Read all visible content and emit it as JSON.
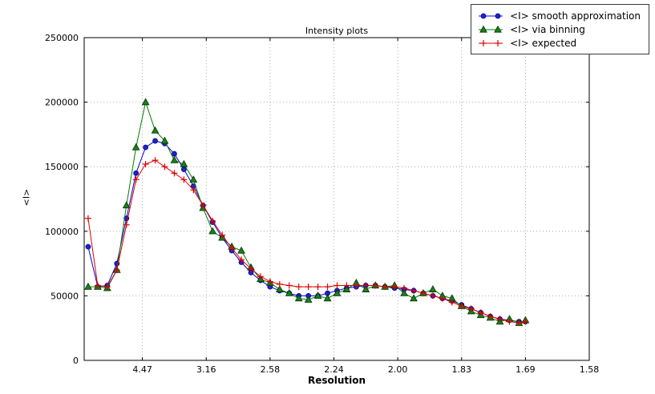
{
  "figure": {
    "title": "Intensity plots",
    "xlabel": "Resolution",
    "ylabel": "<I>"
  },
  "legend": {
    "items": [
      {
        "label": "<I> smooth approximation"
      },
      {
        "label": "<I> via binning"
      },
      {
        "label": "<I> expected"
      }
    ]
  },
  "chart_data": {
    "type": "line",
    "title": "Intensity plots",
    "xlabel": "Resolution",
    "ylabel": "<I>",
    "grid": true,
    "legend_position": "upper right, outside plot top",
    "x_axis": {
      "unit": "resolution shown in Angstrom, axis linear in 1/d^2",
      "lim": [
        0.0044,
        0.4
      ],
      "ticks": [
        {
          "value": 0.05,
          "label": "4.47"
        },
        {
          "value": 0.1,
          "label": "3.16"
        },
        {
          "value": 0.15,
          "label": "2.58"
        },
        {
          "value": 0.2,
          "label": "2.24"
        },
        {
          "value": 0.25,
          "label": "2.00"
        },
        {
          "value": 0.3,
          "label": "1.83"
        },
        {
          "value": 0.35,
          "label": "1.69"
        },
        {
          "value": 0.4,
          "label": "1.58"
        }
      ]
    },
    "y_axis": {
      "lim": [
        0,
        250000
      ],
      "ticks": [
        0,
        50000,
        100000,
        150000,
        200000,
        250000
      ]
    },
    "x": [
      0.0075,
      0.015,
      0.0225,
      0.03,
      0.0375,
      0.045,
      0.0525,
      0.06,
      0.0675,
      0.075,
      0.0825,
      0.09,
      0.0975,
      0.105,
      0.1125,
      0.12,
      0.1275,
      0.135,
      0.1425,
      0.15,
      0.1575,
      0.165,
      0.1725,
      0.18,
      0.1875,
      0.195,
      0.2025,
      0.21,
      0.2175,
      0.225,
      0.2325,
      0.24,
      0.2475,
      0.255,
      0.2625,
      0.27,
      0.2775,
      0.285,
      0.2925,
      0.3,
      0.3075,
      0.315,
      0.3225,
      0.33,
      0.3375,
      0.345,
      0.35
    ],
    "series": [
      {
        "name": "<I> smooth approximation",
        "color": "#0000dd",
        "marker": "circle",
        "marker_fill": "#2222cc",
        "marker_edge": "#00008b",
        "values": [
          88000,
          57000,
          58000,
          75000,
          110000,
          145000,
          165000,
          170000,
          168000,
          160000,
          148000,
          135000,
          120000,
          107000,
          95000,
          85000,
          76000,
          68000,
          62000,
          57000,
          54000,
          52000,
          50000,
          50000,
          50000,
          52000,
          54000,
          56000,
          57000,
          58000,
          58000,
          57000,
          56000,
          55000,
          54000,
          52000,
          50000,
          48000,
          46000,
          43000,
          40000,
          37000,
          34000,
          32000,
          31000,
          30000,
          30000
        ]
      },
      {
        "name": "<I> via binning",
        "color": "#008000",
        "marker": "triangle",
        "marker_fill": "#1e7d1e",
        "marker_edge": "#003300",
        "values": [
          57000,
          57000,
          56000,
          70000,
          120000,
          165000,
          200000,
          178000,
          170000,
          155000,
          152000,
          140000,
          118000,
          100000,
          95000,
          88000,
          85000,
          72000,
          63000,
          60000,
          55000,
          52000,
          48000,
          47000,
          50000,
          48000,
          52000,
          55000,
          60000,
          55000,
          58000,
          57000,
          58000,
          52000,
          48000,
          52000,
          55000,
          50000,
          48000,
          42000,
          38000,
          35000,
          33000,
          30000,
          32000,
          29000,
          31000
        ]
      },
      {
        "name": "<I> expected",
        "color": "#dd0000",
        "marker": "plus",
        "marker_fill": "#dd0000",
        "marker_edge": "#dd0000",
        "values": [
          110000,
          58000,
          57000,
          70000,
          105000,
          140000,
          152000,
          155000,
          150000,
          145000,
          140000,
          132000,
          120000,
          108000,
          97000,
          87000,
          78000,
          71000,
          65000,
          61000,
          59000,
          58000,
          57000,
          57000,
          57000,
          57000,
          58000,
          58000,
          58000,
          58000,
          58000,
          57000,
          57000,
          56000,
          54000,
          52000,
          50000,
          48000,
          45000,
          42000,
          40000,
          37000,
          34000,
          32000,
          30000,
          29000,
          30000
        ]
      }
    ]
  }
}
